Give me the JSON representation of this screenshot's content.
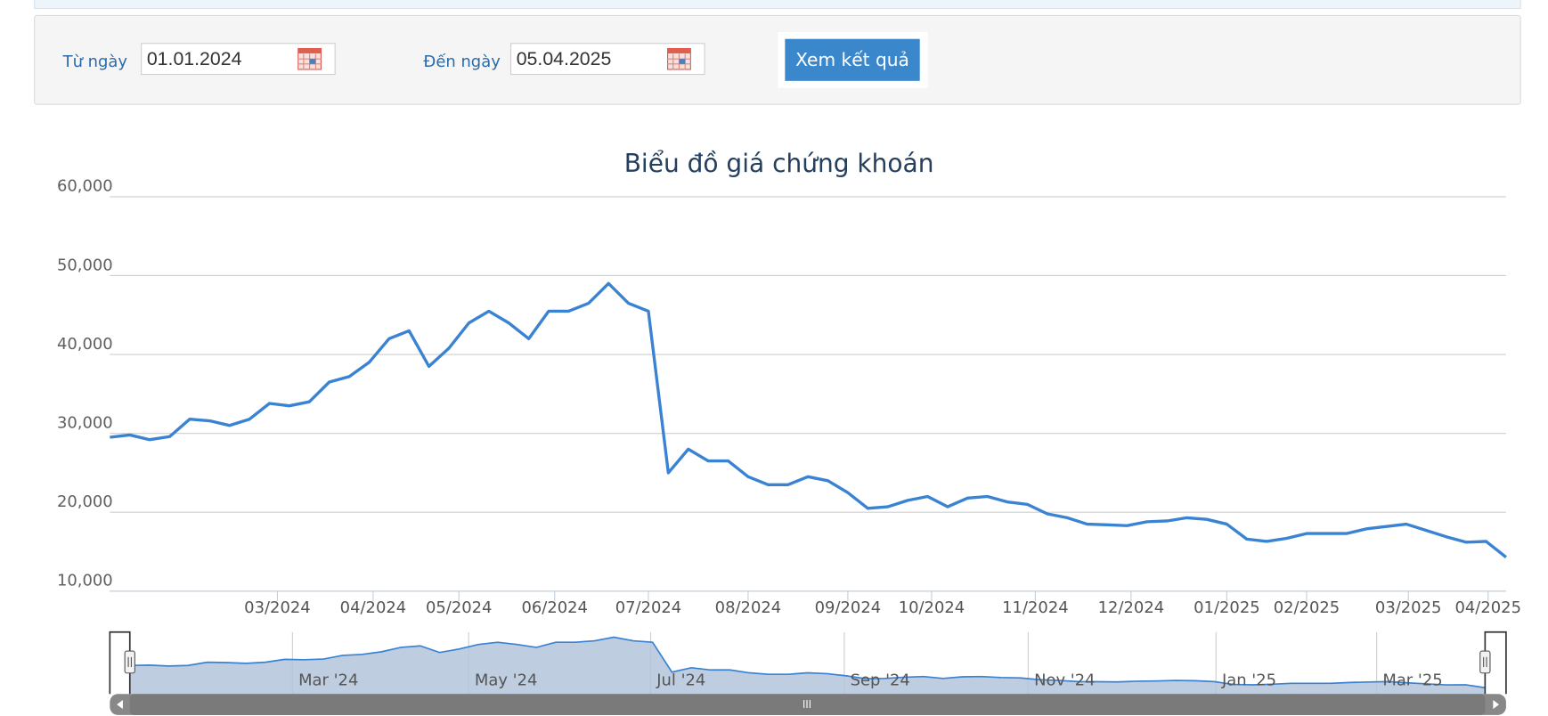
{
  "form": {
    "from_label": "Từ ngày",
    "from_value": "01.01.2024",
    "to_label": "Đến ngày",
    "to_value": "05.04.2025",
    "button": "Xem kết quả"
  },
  "chart_data": {
    "type": "line",
    "title": "Biểu đồ giá chứng khoán",
    "color": "#3a82d2",
    "values": [
      29500,
      29800,
      29200,
      29600,
      31800,
      31600,
      31000,
      31800,
      33800,
      33500,
      34000,
      36500,
      37200,
      39000,
      42000,
      43000,
      38500,
      40800,
      44000,
      45500,
      44000,
      42000,
      45500,
      45500,
      46500,
      49000,
      46500,
      45500,
      25000,
      28000,
      26500,
      26500,
      24500,
      23500,
      23500,
      24500,
      24000,
      22500,
      20500,
      20700,
      21500,
      22000,
      20700,
      21800,
      22000,
      21300,
      21000,
      19800,
      19300,
      18500,
      18400,
      18300,
      18800,
      18900,
      19300,
      19100,
      18500,
      16600,
      16300,
      16700,
      17300,
      17300,
      17300,
      17900,
      18200,
      18500,
      17700,
      16900,
      16200,
      16300,
      14300
    ],
    "xlim": [
      0,
      70
    ],
    "xticks": [
      {
        "value": 8.4,
        "label": "03/2024"
      },
      {
        "value": 13.2,
        "label": "04/2024"
      },
      {
        "value": 17.5,
        "label": "05/2024"
      },
      {
        "value": 22.3,
        "label": "06/2024"
      },
      {
        "value": 27.0,
        "label": "07/2024"
      },
      {
        "value": 32.0,
        "label": "08/2024"
      },
      {
        "value": 37.0,
        "label": "09/2024"
      },
      {
        "value": 41.2,
        "label": "10/2024"
      },
      {
        "value": 46.4,
        "label": "11/2024"
      },
      {
        "value": 51.2,
        "label": "12/2024"
      },
      {
        "value": 56.0,
        "label": "01/2025"
      },
      {
        "value": 60.0,
        "label": "02/2025"
      },
      {
        "value": 65.1,
        "label": "03/2025"
      },
      {
        "value": 69.1,
        "label": "04/2025"
      }
    ],
    "ylim": [
      10000,
      60000
    ],
    "yticks": [
      {
        "value": 10000,
        "label": "10,000"
      },
      {
        "value": 20000,
        "label": "20,000"
      },
      {
        "value": 30000,
        "label": "30,000"
      },
      {
        "value": 40000,
        "label": "40,000"
      },
      {
        "value": 50000,
        "label": "50,000"
      },
      {
        "value": 60000,
        "label": "60,000"
      }
    ],
    "grid": true,
    "navigator": {
      "color": "#b3c4db",
      "xticks": [
        {
          "value": 8.4,
          "label": "Mar '24"
        },
        {
          "value": 17.5,
          "label": "May '24"
        },
        {
          "value": 26.9,
          "label": "Jul '24"
        },
        {
          "value": 36.9,
          "label": "Sep '24"
        },
        {
          "value": 46.4,
          "label": "Nov '24"
        },
        {
          "value": 56.1,
          "label": "Jan '25"
        },
        {
          "value": 64.4,
          "label": "Mar '25"
        }
      ]
    }
  }
}
